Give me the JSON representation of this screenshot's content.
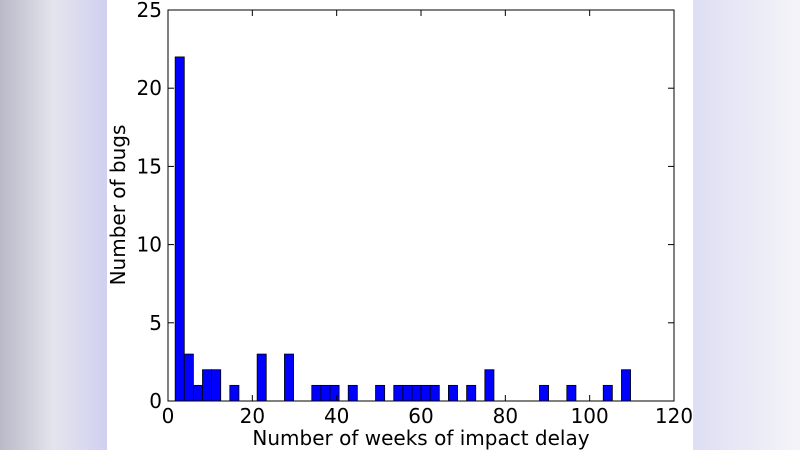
{
  "chart_data": {
    "type": "histogram",
    "xlabel": "Number of weeks of impact delay",
    "ylabel": "Number of bugs",
    "color": "#0000ff",
    "bins": [
      1.7,
      3.86,
      6.02,
      8.18,
      10.34,
      12.5,
      14.66,
      16.82,
      18.98,
      21.14,
      23.3,
      25.46,
      27.62,
      29.78,
      31.94,
      34.1,
      36.26,
      38.42,
      40.58,
      42.74,
      44.9,
      47.06,
      49.22,
      51.38,
      53.54,
      55.7,
      57.86,
      60.02,
      62.18,
      64.34,
      66.5,
      68.66,
      70.82,
      72.98,
      75.14,
      77.3,
      79.46,
      81.62,
      83.78,
      85.94,
      88.1,
      90.26,
      92.42,
      94.58,
      96.74,
      98.9,
      101.06,
      103.22,
      105.38,
      107.54,
      109.7
    ],
    "values": [
      22,
      3,
      1,
      2,
      2,
      0,
      1,
      0,
      0,
      3,
      0,
      0,
      3,
      0,
      0,
      1,
      1,
      1,
      0,
      1,
      0,
      0,
      1,
      0,
      1,
      1,
      1,
      1,
      1,
      0,
      1,
      0,
      1,
      0,
      2,
      0,
      0,
      0,
      0,
      0,
      1,
      0,
      0,
      1,
      0,
      0,
      0,
      1,
      0,
      2
    ],
    "xlim": [
      0,
      120
    ],
    "xticks": [
      0,
      20,
      40,
      60,
      80,
      100,
      120
    ],
    "ylim": [
      0,
      25
    ],
    "yticks": [
      0,
      5,
      10,
      15,
      20,
      25
    ]
  }
}
